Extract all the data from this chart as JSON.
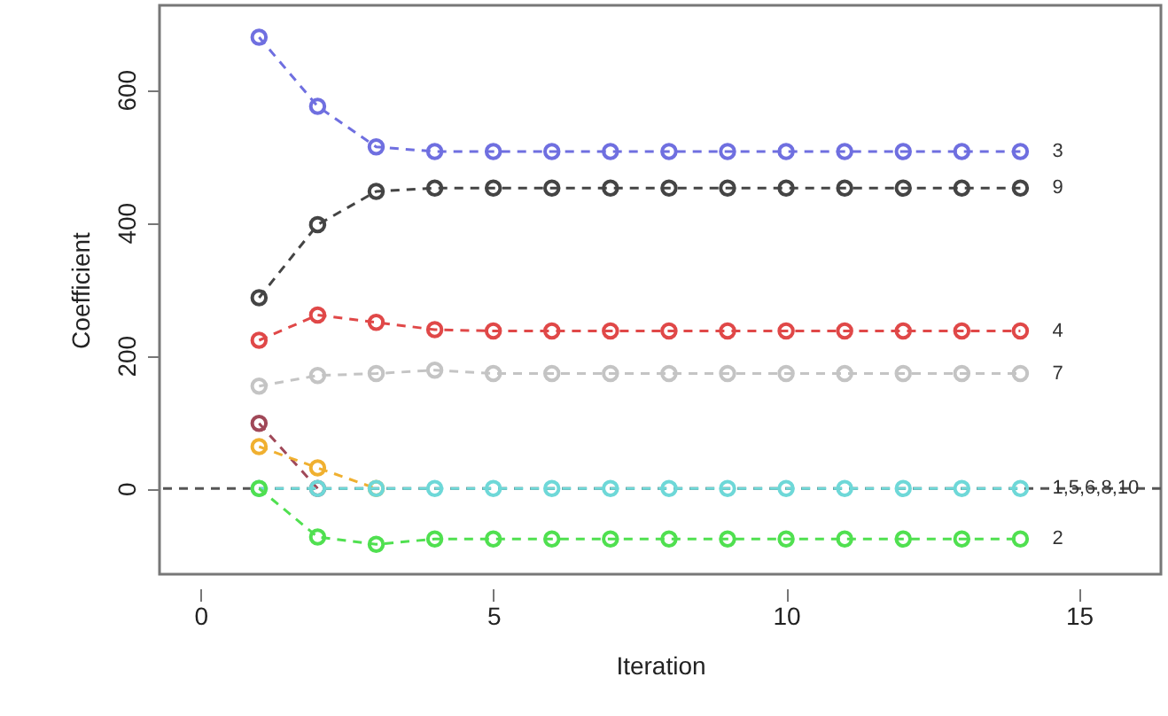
{
  "chart_data": {
    "type": "line",
    "xlabel": "Iteration",
    "ylabel": "Coefficient",
    "xlim": [
      -0.7,
      16.4
    ],
    "xticks": [
      0,
      5,
      10,
      15
    ],
    "ylim": [
      -129,
      727
    ],
    "yticks": [
      0,
      200,
      400,
      600
    ],
    "x": [
      1,
      2,
      3,
      4,
      5,
      6,
      7,
      8,
      9,
      10,
      11,
      12,
      13,
      14
    ],
    "series": [
      {
        "name": "3",
        "color": "#6f6fe0",
        "values": [
          679,
          575,
          514,
          507,
          507,
          507,
          507,
          507,
          507,
          507,
          507,
          507,
          507,
          507
        ]
      },
      {
        "name": "9",
        "color": "#444444",
        "values": [
          287,
          397,
          447,
          452,
          452,
          452,
          452,
          452,
          452,
          452,
          452,
          452,
          452,
          452
        ]
      },
      {
        "name": "4",
        "color": "#e04848",
        "values": [
          223,
          261,
          250,
          239,
          237,
          237,
          237,
          237,
          237,
          237,
          237,
          237,
          237,
          237
        ]
      },
      {
        "name": "7",
        "color": "#c4c4c4",
        "values": [
          154,
          170,
          173,
          178,
          173,
          173,
          173,
          173,
          173,
          173,
          173,
          173,
          173,
          173
        ]
      },
      {
        "color": "#a04858",
        "values": [
          98,
          0,
          null,
          null,
          null,
          null,
          null,
          null,
          null,
          null,
          null,
          null,
          null,
          null
        ]
      },
      {
        "color": "#f0b030",
        "values": [
          63,
          31,
          0,
          null,
          null,
          null,
          null,
          null,
          null,
          null,
          null,
          null,
          null,
          null
        ]
      },
      {
        "name": "1,5,6,8,10",
        "color": "#6ed8d8",
        "values": [
          0,
          0,
          0,
          0,
          0,
          0,
          0,
          0,
          0,
          0,
          0,
          0,
          0,
          0
        ]
      },
      {
        "name": "2",
        "color": "#50e050",
        "values": [
          0,
          -73,
          -84,
          -76,
          -76,
          -76,
          -76,
          -76,
          -76,
          -76,
          -76,
          -76,
          -76,
          -76
        ]
      }
    ],
    "ref_lines": [
      {
        "axis": "y",
        "value": 0,
        "color": "#555555",
        "line_style": "dashed"
      }
    ],
    "marker": "circle",
    "line_style": "dashed"
  }
}
